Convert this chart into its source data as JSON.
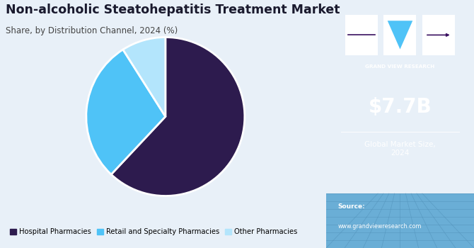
{
  "title": "Non-alcoholic Steatohepatitis Treatment Market",
  "subtitle": "Share, by Distribution Channel, 2024 (%)",
  "slices": [
    {
      "label": "Hospital Pharmacies",
      "value": 62,
      "color": "#2d1b4e"
    },
    {
      "label": "Retail and Specialty Pharmacies",
      "value": 29,
      "color": "#4fc3f7"
    },
    {
      "label": "Other Pharmacies",
      "value": 9,
      "color": "#b3e5fc"
    }
  ],
  "bg_color": "#e8f0f8",
  "right_panel_color": "#3a1060",
  "right_panel_bottom_color": "#7ab0d8",
  "market_size": "$7.7B",
  "market_label": "Global Market Size,\n2024",
  "source_label": "Source:",
  "source_url": "www.grandviewresearch.com",
  "title_color": "#1a1a2e",
  "subtitle_color": "#444444",
  "pie_startangle": 90,
  "logo_square_color": "#ffffff",
  "logo_triangle_color": "#4fc3f7",
  "panel_split": 0.688
}
